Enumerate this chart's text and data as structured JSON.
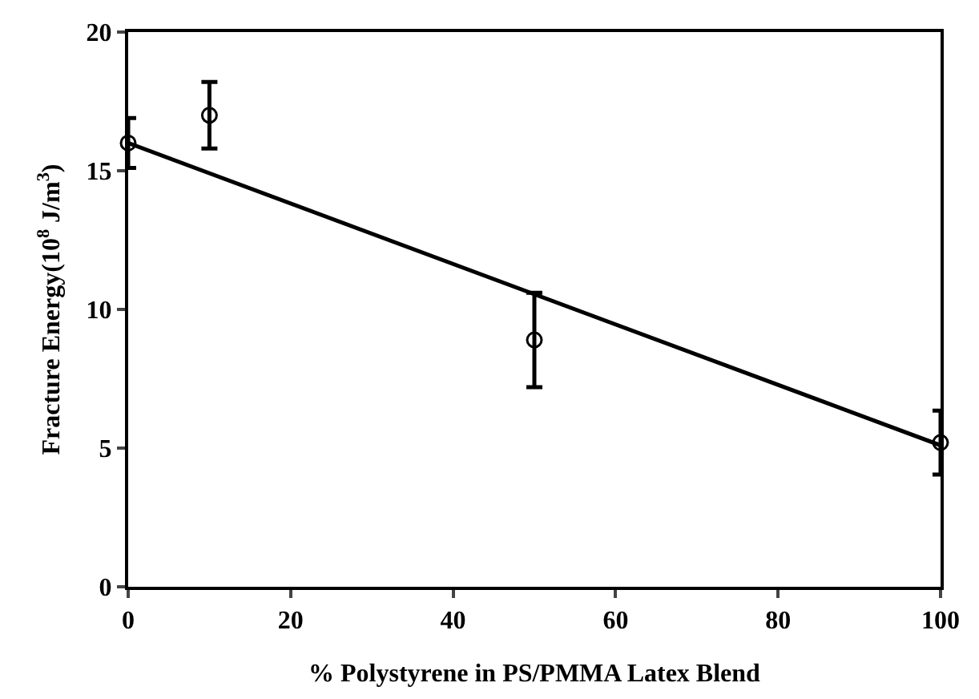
{
  "chart_data": {
    "type": "scatter",
    "xlabel": "% Polystyrene in PS/PMMA Latex Blend",
    "ylabel": "Fracture Energy(10$^{8}$ J/m$^{3}$)",
    "series": [
      {
        "color": "#000000",
        "marker": "circle",
        "x": [
          0,
          10,
          50,
          100
        ],
        "values": [
          16,
          17,
          8.9,
          5.2
        ],
        "errors": [
          0.9,
          1.2,
          1.7,
          1.15
        ]
      },
      {
        "type": "line",
        "color": "#000000",
        "marker": "none",
        "x": [
          0,
          100
        ],
        "values": [
          16,
          5.1
        ]
      }
    ],
    "xlim": [
      0,
      100
    ],
    "xticks": [
      0,
      20,
      40,
      60,
      80,
      100
    ],
    "ylim": [
      0,
      20
    ],
    "yticks": [
      0,
      5,
      10,
      15,
      20
    ],
    "grid": false
  }
}
